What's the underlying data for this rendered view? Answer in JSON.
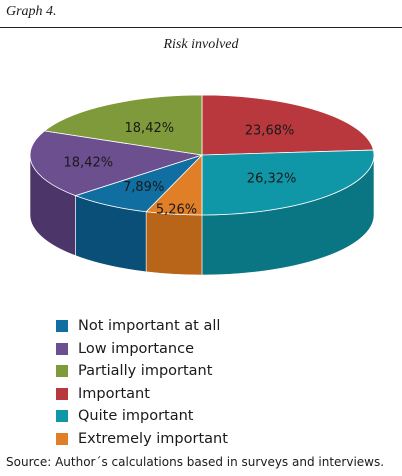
{
  "figure": {
    "label": "Graph 4.",
    "source": "Source: Author´s calculations based in surveys and interviews."
  },
  "chart_data": {
    "type": "pie",
    "title": "Risk involved",
    "legend_position": "bottom-left",
    "slices": [
      {
        "name": "Not important at all",
        "value": 7.89,
        "label": "7,89%",
        "color": "#106ea0",
        "side": "#0a4f77"
      },
      {
        "name": "Low importance",
        "value": 18.42,
        "label": "18,42%",
        "color": "#6b4f8f",
        "side": "#4c3568"
      },
      {
        "name": "Partially important",
        "value": 18.42,
        "label": "18,42%",
        "color": "#7f9a3a",
        "side": "#5c7326"
      },
      {
        "name": "Important",
        "value": 23.68,
        "label": "23,68%",
        "color": "#b9383d",
        "side": "#8a2228"
      },
      {
        "name": "Quite important",
        "value": 26.32,
        "label": "26,32%",
        "color": "#0f97a8",
        "side": "#0b7683"
      },
      {
        "name": "Extremely important",
        "value": 5.26,
        "label": "5,26%",
        "color": "#e07f27",
        "side": "#b8651a"
      }
    ]
  }
}
